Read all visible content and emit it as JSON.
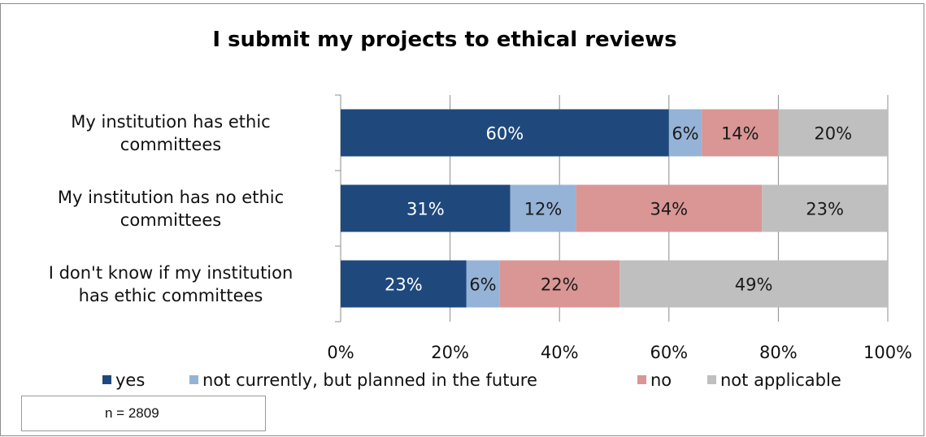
{
  "chart_data": {
    "type": "bar",
    "orientation": "horizontal",
    "stacked": true,
    "title": "I submit my projects to ethical reviews",
    "categories": [
      "My institution has ethic committees",
      "My institution has no ethic committees",
      "I don't know if my institution has ethic committees"
    ],
    "category_lines": [
      [
        "My institution has ethic",
        "committees"
      ],
      [
        "My institution has no ethic",
        "committees"
      ],
      [
        "I don't know if my institution",
        "has ethic committees"
      ]
    ],
    "series": [
      {
        "name": "yes",
        "color": "#1f497d",
        "values": [
          60,
          31,
          23
        ],
        "labels": [
          "60%",
          "31%",
          "23%"
        ],
        "label_color": "#ffffff"
      },
      {
        "name": "not currently, but planned in the future",
        "color": "#95b3d7",
        "values": [
          6,
          12,
          6
        ],
        "labels": [
          "6%",
          "12%",
          "6%"
        ],
        "label_color": "#1a1a1a"
      },
      {
        "name": "no",
        "color": "#d99694",
        "values": [
          14,
          34,
          22
        ],
        "labels": [
          "14%",
          "34%",
          "22%"
        ],
        "label_color": "#1a1a1a"
      },
      {
        "name": "not applicable",
        "color": "#bfbfbf",
        "values": [
          20,
          23,
          49
        ],
        "labels": [
          "20%",
          "23%",
          "49%"
        ],
        "label_color": "#1a1a1a"
      }
    ],
    "xlim": [
      0,
      100
    ],
    "x_ticks": [
      "0%",
      "20%",
      "40%",
      "60%",
      "80%",
      "100%"
    ],
    "grid": true,
    "legend_position": "bottom"
  },
  "note": "n = 2809"
}
